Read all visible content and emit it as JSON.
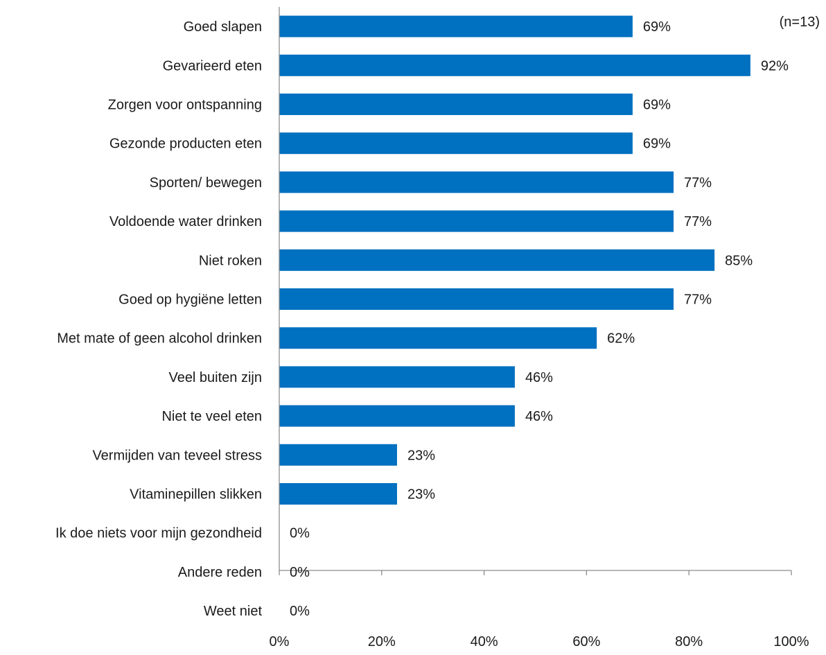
{
  "chart_data": {
    "type": "bar",
    "orientation": "horizontal",
    "title": "",
    "xlabel": "",
    "ylabel": "",
    "note": "(n=13)",
    "categories": [
      "Goed slapen",
      "Gevarieerd eten",
      "Zorgen voor ontspanning",
      "Gezonde producten eten",
      "Sporten/ bewegen",
      "Voldoende water drinken",
      "Niet roken",
      "Goed op hygiëne letten",
      "Met mate of geen alcohol drinken",
      "Veel buiten zijn",
      "Niet te veel eten",
      "Vermijden van teveel stress",
      "Vitaminepillen slikken",
      "Ik doe niets voor mijn gezondheid",
      "Andere reden",
      "Weet niet"
    ],
    "values": [
      69,
      92,
      69,
      69,
      77,
      77,
      85,
      77,
      62,
      46,
      46,
      23,
      23,
      0,
      0,
      0
    ],
    "value_labels": [
      "69%",
      "92%",
      "69%",
      "69%",
      "77%",
      "77%",
      "85%",
      "77%",
      "62%",
      "46%",
      "46%",
      "23%",
      "23%",
      "0%",
      "0%",
      "0%"
    ],
    "xlim": [
      0,
      100
    ],
    "x_ticks": [
      0,
      20,
      40,
      60,
      80,
      100
    ],
    "x_tick_labels": [
      "0%",
      "20%",
      "40%",
      "60%",
      "80%",
      "100%"
    ],
    "grid": false,
    "legend": "none",
    "bar_color": "#0070C0",
    "axis_color": "#8C8C8C"
  }
}
